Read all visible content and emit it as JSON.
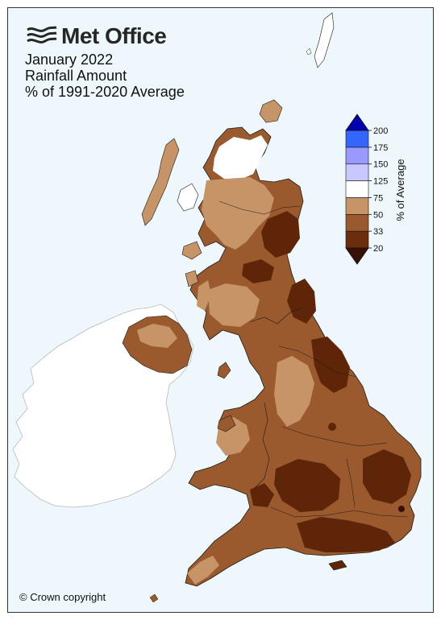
{
  "header": {
    "brand": "Met Office",
    "title_line1": "January 2022",
    "title_line2": "Rainfall Amount",
    "title_line3": "% of 1991-2020 Average"
  },
  "footer": {
    "copyright": "© Crown copyright"
  },
  "legend": {
    "title": "% of Average",
    "tick_labels": [
      "20",
      "33",
      "50",
      "75",
      "125",
      "150",
      "175",
      "200"
    ],
    "bins": [
      {
        "from": "20",
        "to": "33",
        "color": "#6b2d0c"
      },
      {
        "from": "33",
        "to": "50",
        "color": "#9a5a2e"
      },
      {
        "from": "50",
        "to": "75",
        "color": "#c69466"
      },
      {
        "from": "75",
        "to": "125",
        "color": "#ffffff"
      },
      {
        "from": "125",
        "to": "150",
        "color": "#c8c8ff"
      },
      {
        "from": "150",
        "to": "175",
        "color": "#9999ff"
      },
      {
        "from": "175",
        "to": "200",
        "color": "#3366ff"
      }
    ],
    "under_color": "#3a1005",
    "over_color": "#0000b0"
  },
  "map_colors": {
    "sea": "#eef7fb",
    "ireland_land": "#ffffff",
    "very_dry": "#5e2508",
    "dry": "#9a5a2e",
    "moderately_dry": "#c69466",
    "near_average": "#ffffff"
  }
}
